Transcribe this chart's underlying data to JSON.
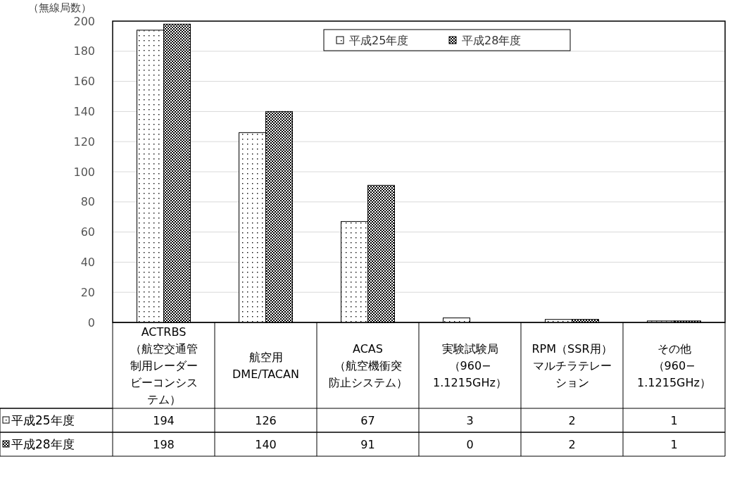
{
  "chart_data": {
    "type": "bar",
    "ylabel": "（無線局数）",
    "categories": [
      "ACTRBS（航空交通管制用レーダービーコンシステム）",
      "航空用DME/TACAN",
      "ACAS（航空機衝突防止システム）",
      "実験試験局（960−1.1215GHz）",
      "RPM（SSR用）マルチラテレーション",
      "その他（960−1.1215GHz）"
    ],
    "series": [
      {
        "name": "平成25年度",
        "color": "#ffffff",
        "values": [
          194,
          126,
          67,
          3,
          2,
          1
        ]
      },
      {
        "name": "平成28年度",
        "color": "#000000",
        "values": [
          198,
          140,
          91,
          0,
          2,
          1
        ]
      }
    ],
    "ylim": [
      0,
      200
    ],
    "yticks": [
      0,
      20,
      40,
      60,
      80,
      100,
      120,
      140,
      160,
      180,
      200
    ],
    "grid": "y",
    "legend": "top",
    "data_labels": true
  }
}
